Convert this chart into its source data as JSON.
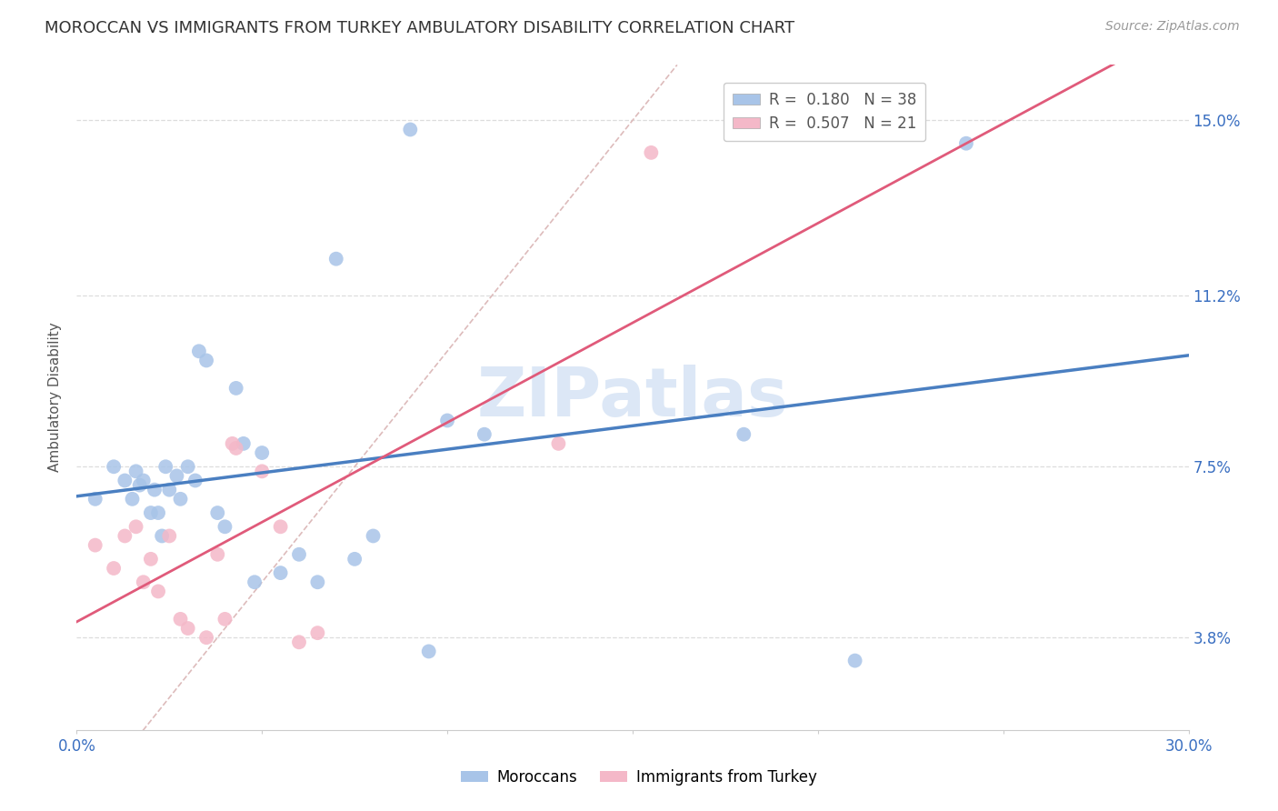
{
  "title": "MOROCCAN VS IMMIGRANTS FROM TURKEY AMBULATORY DISABILITY CORRELATION CHART",
  "source": "Source: ZipAtlas.com",
  "ylabel": "Ambulatory Disability",
  "ytick_vals": [
    0.038,
    0.075,
    0.112,
    0.15
  ],
  "ytick_labels": [
    "3.8%",
    "7.5%",
    "11.2%",
    "15.0%"
  ],
  "xmin": 0.0,
  "xmax": 0.3,
  "ymin": 0.018,
  "ymax": 0.162,
  "legend_blue_R": "R =  0.180",
  "legend_blue_N": "N = 38",
  "legend_pink_R": "R =  0.507",
  "legend_pink_N": "N = 21",
  "watermark": "ZIPatlas",
  "blue_color": "#a8c4e8",
  "pink_color": "#f4b8c8",
  "blue_line_color": "#4a7fc1",
  "pink_line_color": "#e05a7a",
  "diag_line_color": "#ddbbbb",
  "blue_scatter_x": [
    0.005,
    0.01,
    0.013,
    0.015,
    0.016,
    0.017,
    0.018,
    0.02,
    0.021,
    0.022,
    0.023,
    0.024,
    0.025,
    0.027,
    0.028,
    0.03,
    0.032,
    0.033,
    0.035,
    0.038,
    0.04,
    0.043,
    0.045,
    0.048,
    0.05,
    0.055,
    0.06,
    0.065,
    0.07,
    0.075,
    0.08,
    0.09,
    0.095,
    0.1,
    0.11,
    0.18,
    0.21,
    0.24
  ],
  "blue_scatter_y": [
    0.068,
    0.075,
    0.072,
    0.068,
    0.074,
    0.071,
    0.072,
    0.065,
    0.07,
    0.065,
    0.06,
    0.075,
    0.07,
    0.073,
    0.068,
    0.075,
    0.072,
    0.1,
    0.098,
    0.065,
    0.062,
    0.092,
    0.08,
    0.05,
    0.078,
    0.052,
    0.056,
    0.05,
    0.12,
    0.055,
    0.06,
    0.148,
    0.035,
    0.085,
    0.082,
    0.082,
    0.033,
    0.145
  ],
  "pink_scatter_x": [
    0.005,
    0.01,
    0.013,
    0.016,
    0.018,
    0.02,
    0.022,
    0.025,
    0.028,
    0.03,
    0.035,
    0.038,
    0.04,
    0.042,
    0.043,
    0.05,
    0.055,
    0.06,
    0.065,
    0.13,
    0.155
  ],
  "pink_scatter_y": [
    0.058,
    0.053,
    0.06,
    0.062,
    0.05,
    0.055,
    0.048,
    0.06,
    0.042,
    0.04,
    0.038,
    0.056,
    0.042,
    0.08,
    0.079,
    0.074,
    0.062,
    0.037,
    0.039,
    0.08,
    0.143
  ]
}
